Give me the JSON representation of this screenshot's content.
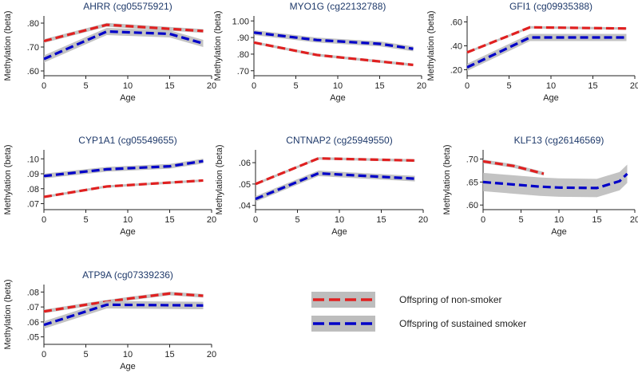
{
  "colors": {
    "non_smoker": "#e02020",
    "sustained_smoker": "#0000c8",
    "ci_band": "#bdbdbd",
    "title": "#1f3a6b"
  },
  "legend": {
    "items": [
      {
        "key": "non_smoker",
        "label": "Offspring of non-smoker",
        "dash": "long-dash"
      },
      {
        "key": "sustained_smoker",
        "label": "Offspring of sustained smoker",
        "dash": "long-dash"
      }
    ]
  },
  "chart_data": [
    {
      "type": "line",
      "title": "AHRR (cg05575921)",
      "xlabel": "Age",
      "ylabel": "Methylation (beta)",
      "xlim": [
        0,
        20
      ],
      "ylim": [
        0.58,
        0.83
      ],
      "x_ticks": [
        0,
        5,
        10,
        15,
        20
      ],
      "y_ticks": [
        0.6,
        0.7,
        0.8
      ],
      "y_tick_labels": [
        ".60",
        ".70",
        ".80"
      ],
      "series": [
        {
          "name": "Offspring of non-smoker",
          "x": [
            0,
            7.5,
            19
          ],
          "y": [
            0.725,
            0.793,
            0.767
          ],
          "ci": 0.008
        },
        {
          "name": "Offspring of sustained smoker",
          "x": [
            0,
            7.5,
            15,
            19
          ],
          "y": [
            0.65,
            0.765,
            0.755,
            0.715
          ],
          "ci": 0.015
        }
      ]
    },
    {
      "type": "line",
      "title": "MYO1G (cg22132788)",
      "xlabel": "Age",
      "ylabel": "Methylation (beta)",
      "xlim": [
        0,
        20
      ],
      "ylim": [
        0.67,
        1.03
      ],
      "x_ticks": [
        0,
        5,
        10,
        15,
        20
      ],
      "y_ticks": [
        0.7,
        0.8,
        0.9,
        1.0
      ],
      "y_tick_labels": [
        ".70",
        ".80",
        ".90",
        "1.00"
      ],
      "series": [
        {
          "name": "Offspring of non-smoker",
          "x": [
            0,
            7.5,
            19
          ],
          "y": [
            0.87,
            0.795,
            0.735
          ],
          "ci": 0.008
        },
        {
          "name": "Offspring of sustained smoker",
          "x": [
            0,
            7.5,
            15,
            19
          ],
          "y": [
            0.93,
            0.885,
            0.862,
            0.832
          ],
          "ci": 0.015
        }
      ]
    },
    {
      "type": "line",
      "title": "GFI1 (cg09935388)",
      "xlabel": "Age",
      "ylabel": "Methylation (beta)",
      "xlim": [
        0,
        20
      ],
      "ylim": [
        0.15,
        0.65
      ],
      "x_ticks": [
        0,
        5,
        10,
        15,
        20
      ],
      "y_ticks": [
        0.2,
        0.4,
        0.6
      ],
      "y_tick_labels": [
        ".20",
        ".40",
        ".60"
      ],
      "series": [
        {
          "name": "Offspring of non-smoker",
          "x": [
            0,
            7.5,
            19
          ],
          "y": [
            0.345,
            0.555,
            0.545
          ],
          "ci": 0.01
        },
        {
          "name": "Offspring of sustained smoker",
          "x": [
            0,
            7.5,
            19
          ],
          "y": [
            0.22,
            0.47,
            0.47
          ],
          "ci": 0.03
        }
      ]
    },
    {
      "type": "line",
      "title": "CYP1A1 (cg05549655)",
      "xlabel": "Age",
      "ylabel": "Methylation (beta)",
      "xlim": [
        0,
        20
      ],
      "ylim": [
        0.066,
        0.106
      ],
      "x_ticks": [
        0,
        5,
        10,
        15,
        20
      ],
      "y_ticks": [
        0.07,
        0.08,
        0.09,
        0.1
      ],
      "y_tick_labels": [
        ".07",
        ".08",
        ".09",
        ".10"
      ],
      "series": [
        {
          "name": "Offspring of non-smoker",
          "x": [
            0,
            7.5,
            19
          ],
          "y": [
            0.0745,
            0.0815,
            0.0855
          ],
          "ci": 0.0008
        },
        {
          "name": "Offspring of sustained smoker",
          "x": [
            0,
            7.5,
            15,
            19
          ],
          "y": [
            0.0885,
            0.093,
            0.095,
            0.0985
          ],
          "ci": 0.0016
        }
      ]
    },
    {
      "type": "line",
      "title": "CNTNAP2 (cg25949550)",
      "xlabel": "Age",
      "ylabel": "Methylation (beta)",
      "xlim": [
        0,
        20
      ],
      "ylim": [
        0.038,
        0.066
      ],
      "x_ticks": [
        0,
        5,
        10,
        15,
        20
      ],
      "y_ticks": [
        0.04,
        0.05,
        0.06
      ],
      "y_tick_labels": [
        ".04",
        ".05",
        ".06"
      ],
      "series": [
        {
          "name": "Offspring of non-smoker",
          "x": [
            0,
            7.5,
            19
          ],
          "y": [
            0.05,
            0.062,
            0.061
          ],
          "ci": 0.0006
        },
        {
          "name": "Offspring of sustained smoker",
          "x": [
            0,
            7.5,
            19
          ],
          "y": [
            0.043,
            0.055,
            0.0525
          ],
          "ci": 0.0013
        }
      ]
    },
    {
      "type": "line",
      "title": "KLF13 (cg26146569)",
      "xlabel": "Age",
      "ylabel": "Methylation (beta)",
      "xlim": [
        0,
        20
      ],
      "ylim": [
        0.59,
        0.72
      ],
      "x_ticks": [
        0,
        5,
        10,
        15,
        20
      ],
      "y_ticks": [
        0.6,
        0.65,
        0.7
      ],
      "y_tick_labels": [
        ".60",
        ".65",
        ".70"
      ],
      "series": [
        {
          "name": "Offspring of non-smoker",
          "x": [
            0,
            4,
            8
          ],
          "y": [
            0.695,
            0.685,
            0.668
          ],
          "ci": 0.004
        },
        {
          "name": "Offspring of sustained smoker",
          "x": [
            0,
            7.5,
            10,
            15,
            18,
            19
          ],
          "y": [
            0.65,
            0.64,
            0.638,
            0.637,
            0.652,
            0.668
          ],
          "ci": 0.02
        }
      ]
    },
    {
      "type": "line",
      "title": "ATP9A (cg07339236)",
      "xlabel": "Age",
      "ylabel": "Methylation (beta)",
      "xlim": [
        0,
        20
      ],
      "ylim": [
        0.045,
        0.085
      ],
      "x_ticks": [
        0,
        5,
        10,
        15,
        20
      ],
      "y_ticks": [
        0.05,
        0.06,
        0.07,
        0.08
      ],
      "y_tick_labels": [
        ".05",
        ".06",
        ".07",
        ".08"
      ],
      "series": [
        {
          "name": "Offspring of non-smoker",
          "x": [
            0,
            5,
            10,
            15,
            19
          ],
          "y": [
            0.067,
            0.0715,
            0.0755,
            0.079,
            0.0775
          ],
          "ci": 0.0012
        },
        {
          "name": "Offspring of sustained smoker",
          "x": [
            0,
            7.5,
            19
          ],
          "y": [
            0.058,
            0.0715,
            0.071
          ],
          "ci": 0.0025
        }
      ]
    }
  ]
}
